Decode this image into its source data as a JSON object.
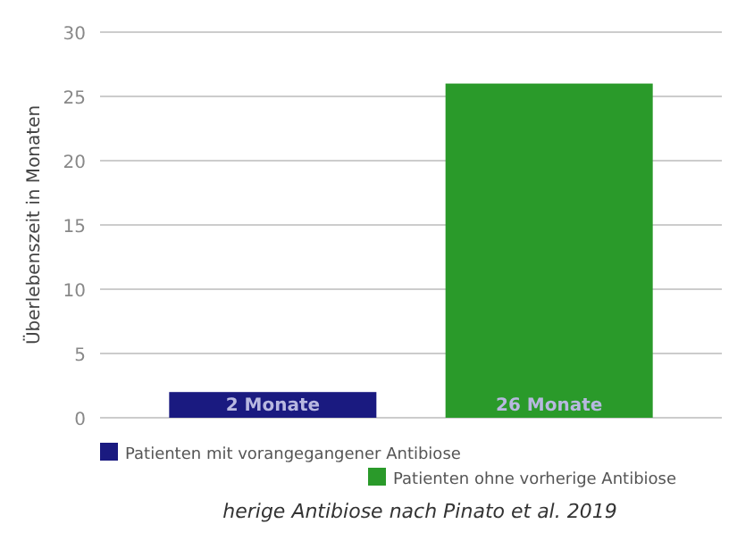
{
  "chart_data": {
    "type": "bar",
    "ylabel": "Überlebenszeit in Monaten",
    "categories": [
      null,
      null
    ],
    "series": [
      {
        "name": "Patienten mit vorangegangener Antibiose",
        "color": "#1a1a80",
        "values": [
          2,
          null
        ],
        "value_labels": [
          "2 Monate",
          null
        ]
      },
      {
        "name": "Patienten ohne vorherige Antibiose",
        "color": "#2a9a2a",
        "values": [
          null,
          26
        ],
        "value_labels": [
          null,
          "26 Monate"
        ]
      }
    ],
    "ylim": [
      0,
      30
    ],
    "yticks": [
      0,
      5,
      10,
      15,
      20,
      25,
      30
    ],
    "grid": "y",
    "legend": "bottom",
    "annotations": [
      "herige Antibiose nach Pinato et al. 2019"
    ]
  }
}
